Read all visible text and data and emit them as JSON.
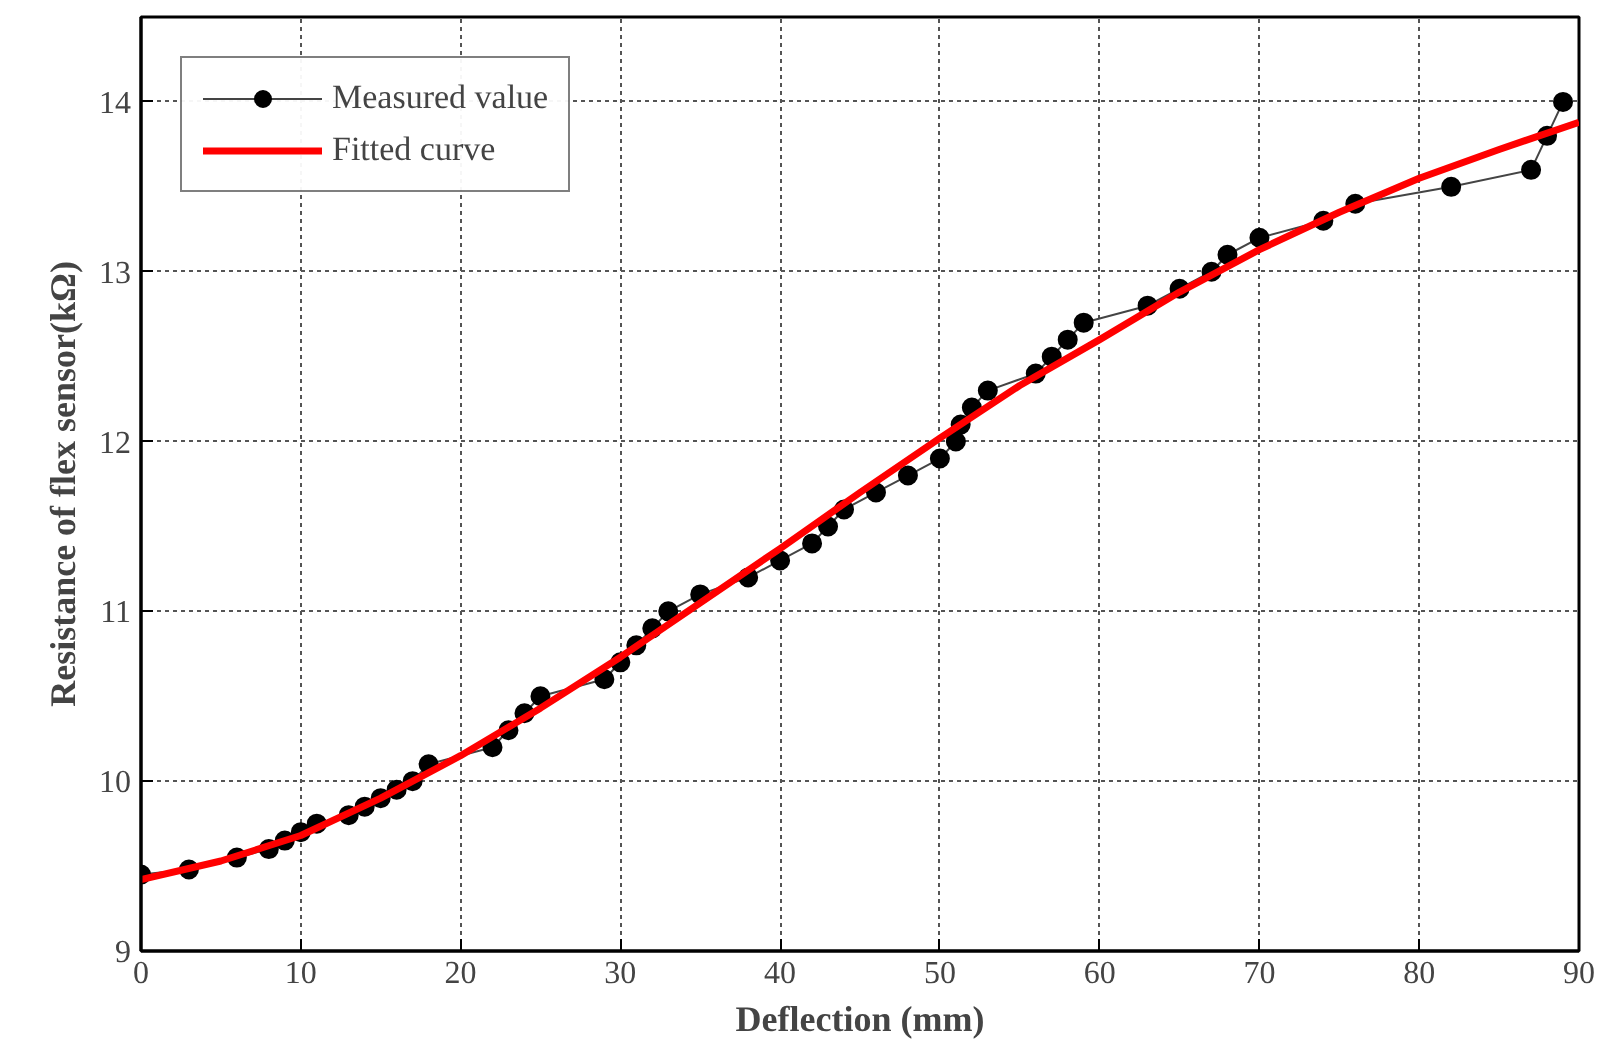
{
  "chart_data": {
    "type": "line",
    "xlabel": "Deflection (mm)",
    "ylabel": "Resistance of flex sensor(kΩ)",
    "xlim": [
      0,
      90
    ],
    "ylim": [
      9,
      14.5
    ],
    "xticks": [
      0,
      10,
      20,
      30,
      40,
      50,
      60,
      70,
      80,
      90
    ],
    "yticks": [
      9,
      10,
      11,
      12,
      13,
      14
    ],
    "grid": true,
    "legend": "top left",
    "series": [
      {
        "name": "Measured value",
        "color": "#000000",
        "marker": "circle",
        "x": [
          0,
          3,
          6,
          8,
          9,
          10,
          11,
          13,
          14,
          15,
          16,
          17,
          18,
          22,
          23,
          24,
          25,
          29,
          30,
          31,
          32,
          33,
          35,
          38,
          40,
          42,
          43,
          44,
          46,
          48,
          50,
          51,
          51.3,
          52,
          53,
          56,
          57,
          58,
          59,
          63,
          65,
          67,
          68,
          70,
          74,
          76,
          82,
          87,
          88,
          89
        ],
        "values": [
          9.45,
          9.48,
          9.55,
          9.6,
          9.65,
          9.7,
          9.75,
          9.8,
          9.85,
          9.9,
          9.95,
          10.0,
          10.1,
          10.2,
          10.3,
          10.4,
          10.5,
          10.6,
          10.7,
          10.8,
          10.9,
          11.0,
          11.1,
          11.2,
          11.3,
          11.4,
          11.5,
          11.6,
          11.7,
          11.8,
          11.9,
          12.0,
          12.1,
          12.2,
          12.3,
          12.4,
          12.5,
          12.6,
          12.7,
          12.8,
          12.9,
          13.0,
          13.1,
          13.2,
          13.3,
          13.4,
          13.5,
          13.6,
          13.8,
          14.0
        ]
      },
      {
        "name": "Fitted curve",
        "color": "#ff0000",
        "marker": "none",
        "x": [
          0,
          5,
          10,
          15,
          20,
          25,
          30,
          35,
          40,
          45,
          50,
          55,
          60,
          65,
          70,
          75,
          80,
          85,
          90
        ],
        "values": [
          9.42,
          9.53,
          9.68,
          9.9,
          10.15,
          10.43,
          10.73,
          11.05,
          11.37,
          11.7,
          12.02,
          12.33,
          12.6,
          12.88,
          13.13,
          13.35,
          13.55,
          13.72,
          13.88
        ]
      }
    ]
  }
}
